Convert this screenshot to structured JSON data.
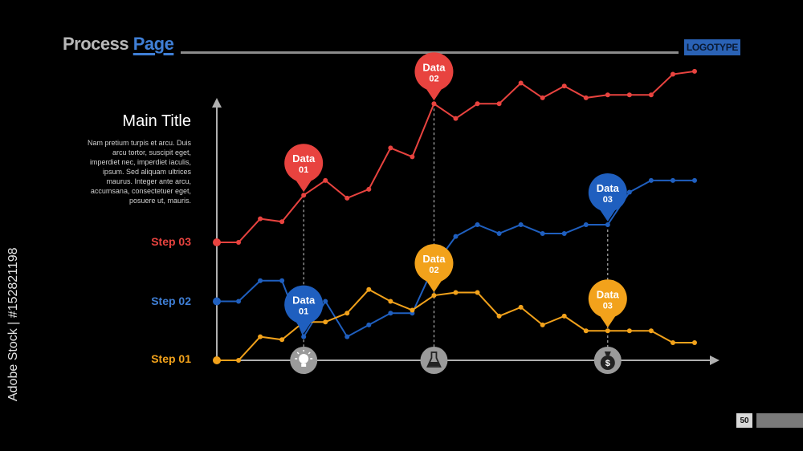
{
  "header": {
    "title_part1": "Process ",
    "title_part2": "Page",
    "logotype": "LOGOTYPE"
  },
  "intro": {
    "title": "Main Title",
    "text": "Nam pretium turpis et arcu. Duis arcu tortor, suscipit eget, imperdiet nec, imperdiet iaculis, ipsum. Sed aliquam ultrices maurus. Integer ante arcu, accumsana, consectetuer eget, posuere ut, mauris."
  },
  "page_number": "50",
  "watermark": "Adobe Stock | #152821198",
  "colors": {
    "red": "#e8433f",
    "blue": "#1f5fbf",
    "orange": "#f2a21b",
    "axis": "#b0b0b0",
    "icon_bg": "#9a9a9a"
  },
  "chart_data": {
    "type": "line",
    "x": [
      0,
      1,
      2,
      3,
      4,
      5,
      6,
      7,
      8,
      9,
      10,
      11,
      12,
      13,
      14,
      15,
      16,
      17,
      18,
      19,
      20,
      21,
      22
    ],
    "y_categories": [
      "Step 01",
      "Step 02",
      "Step 03"
    ],
    "series": [
      {
        "color": "red",
        "values": [
          3.0,
          3.0,
          3.4,
          3.35,
          3.8,
          4.05,
          3.75,
          3.9,
          4.6,
          4.45,
          5.35,
          5.1,
          5.35,
          5.35,
          5.7,
          5.45,
          5.65,
          5.45,
          5.5,
          5.5,
          5.5,
          5.85,
          5.9
        ]
      },
      {
        "color": "blue",
        "values": [
          2.0,
          2.0,
          2.35,
          2.35,
          1.4,
          2.0,
          1.4,
          1.6,
          1.8,
          1.8,
          2.6,
          3.1,
          3.3,
          3.15,
          3.3,
          3.15,
          3.15,
          3.3,
          3.3,
          3.85,
          4.05,
          4.05,
          4.05
        ]
      },
      {
        "color": "orange",
        "values": [
          1.0,
          1.0,
          1.4,
          1.35,
          1.65,
          1.65,
          1.8,
          2.2,
          2.0,
          1.85,
          2.1,
          2.15,
          2.15,
          1.75,
          1.9,
          1.6,
          1.75,
          1.5,
          1.5,
          1.5,
          1.5,
          1.3,
          1.3
        ]
      }
    ],
    "markers": [
      {
        "label": "Data\n01",
        "color": "red",
        "series": 0,
        "index": 4,
        "icon": "lightbulb-icon"
      },
      {
        "label": "Data\n02",
        "color": "red",
        "series": 0,
        "index": 10,
        "icon": "flask-icon"
      },
      {
        "label": "Data\n03",
        "color": "blue",
        "series": 1,
        "index": 18,
        "icon": "money-bag-icon"
      },
      {
        "label": "Data\n01",
        "color": "blue",
        "series": 1,
        "index": 4,
        "icon": ""
      },
      {
        "label": "Data\n02",
        "color": "orange",
        "series": 2,
        "index": 10,
        "icon": ""
      },
      {
        "label": "Data\n03",
        "color": "orange",
        "series": 2,
        "index": 18,
        "icon": ""
      }
    ]
  }
}
